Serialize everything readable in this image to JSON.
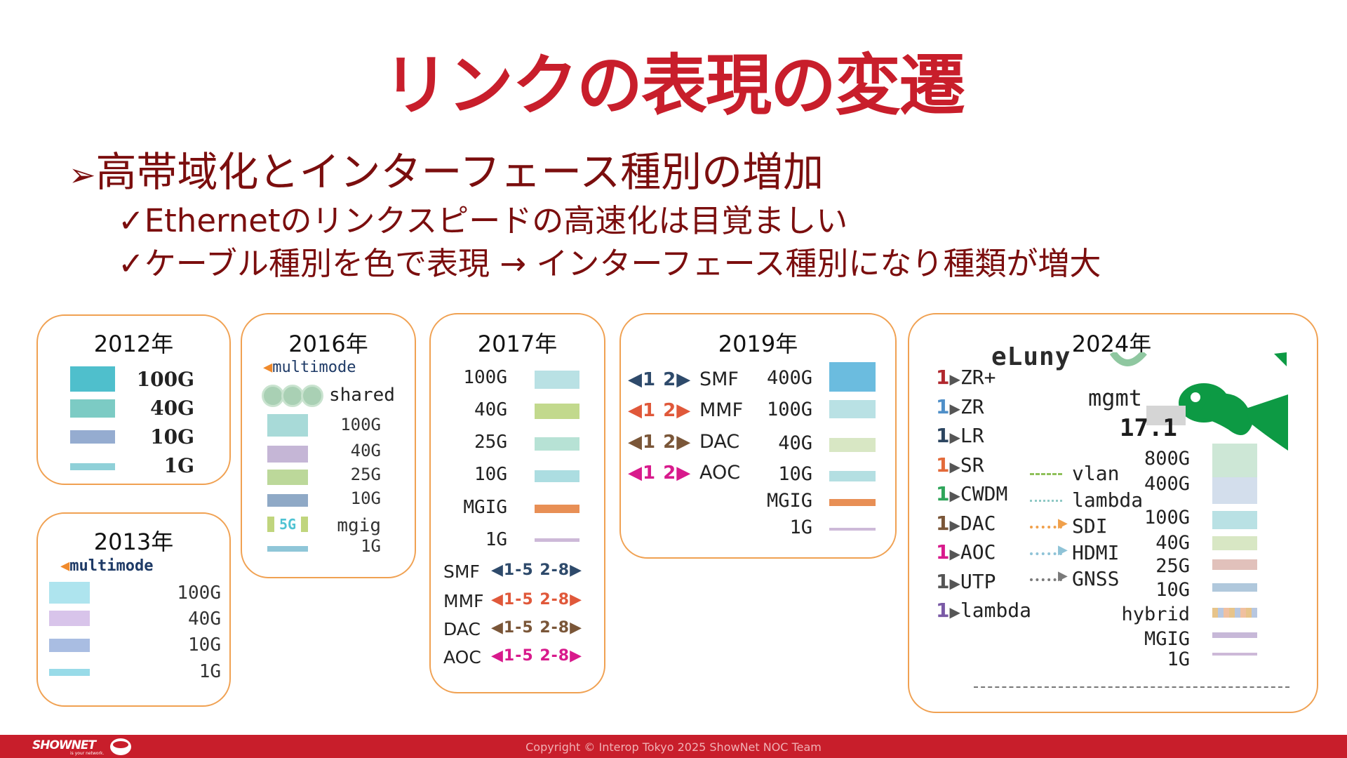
{
  "title": "リンクの表現の変遷",
  "bullets": {
    "main": "高帯域化とインターフェース種別の増加",
    "marker": "➢",
    "check": "✓",
    "sub1": "Ethernetのリンクスピードの高速化は目覚ましい",
    "sub2": "ケーブル種別を色で表現 → インターフェース種別になり種類が増大"
  },
  "y2012": {
    "year": "2012年",
    "items": [
      {
        "label": "100G",
        "color": "#4fbfcc"
      },
      {
        "label": "40G",
        "color": "#7ccbc4"
      },
      {
        "label": "10G",
        "color": "#95acd0"
      },
      {
        "label": "1G",
        "color": "#8fd0d8"
      }
    ]
  },
  "y2013": {
    "year": "2013年",
    "multimode": "multimode",
    "items": [
      {
        "label": "100G",
        "color": "#aee4ee"
      },
      {
        "label": "40G",
        "color": "#d8c4ea"
      },
      {
        "label": "10G",
        "color": "#a9bde2"
      },
      {
        "label": "1G",
        "color": "#98dbe8"
      }
    ]
  },
  "y2016": {
    "year": "2016年",
    "multimode": "multimode",
    "shared": "shared",
    "items": [
      {
        "label": "100G",
        "color": "#a8dad8"
      },
      {
        "label": "40G",
        "color": "#c5b6d6"
      },
      {
        "label": "25G",
        "color": "#bcd89a"
      },
      {
        "label": "10G",
        "color": "#8fa9c6"
      }
    ],
    "mgig_tag": "5G",
    "mgig": "mgig",
    "g1": "1G"
  },
  "y2017": {
    "year": "2017年",
    "items": [
      {
        "label": "100G",
        "color": "#b9e1e4"
      },
      {
        "label": "40G",
        "color": "#c2d98d"
      },
      {
        "label": "25G",
        "color": "#b7e2d5"
      },
      {
        "label": "10G",
        "color": "#acdde1"
      },
      {
        "label": "MGIG",
        "color": "#e88f55"
      },
      {
        "label": "1G",
        "color": "#cdb9d8"
      }
    ],
    "cables": [
      {
        "label": "SMF",
        "ports": "◀1-5 2-8▶",
        "color": "#2e4a6b"
      },
      {
        "label": "MMF",
        "ports": "◀1-5 2-8▶",
        "color": "#e0583a"
      },
      {
        "label": "DAC",
        "ports": "◀1-5 2-8▶",
        "color": "#7a5638"
      },
      {
        "label": "AOC",
        "ports": "◀1-5 2-8▶",
        "color": "#d81a8c"
      }
    ]
  },
  "y2019": {
    "year": "2019年",
    "cables": [
      {
        "label": "SMF",
        "ports": "◀1 2▶",
        "color": "#2e4a6b"
      },
      {
        "label": "MMF",
        "ports": "◀1 2▶",
        "color": "#e0583a"
      },
      {
        "label": "DAC",
        "ports": "◀1 2▶",
        "color": "#7a5638"
      },
      {
        "label": "AOC",
        "ports": "◀1 2▶",
        "color": "#d81a8c"
      }
    ],
    "items": [
      {
        "label": "400G",
        "color": "#6bbcdf"
      },
      {
        "label": "100G",
        "color": "#b9e1e4"
      },
      {
        "label": "40G",
        "color": "#d8e7c4"
      },
      {
        "label": "10G",
        "color": "#b4dfe2"
      },
      {
        "label": "MGIG",
        "color": "#e88f55"
      },
      {
        "label": "1G",
        "color": "#cdb9d8"
      }
    ]
  },
  "y2024": {
    "year": "2024年",
    "optics": [
      {
        "label": "ZR+",
        "color": "#b1282e"
      },
      {
        "label": "ZR",
        "color": "#4f8fc8"
      },
      {
        "label": "LR",
        "color": "#2c4560"
      },
      {
        "label": "SR",
        "color": "#e36a3a"
      },
      {
        "label": "CWDM",
        "color": "#2fa55a"
      },
      {
        "label": "DAC",
        "color": "#7a5638"
      },
      {
        "label": "AOC",
        "color": "#d81a8c"
      },
      {
        "label": "UTP",
        "color": "#555555"
      },
      {
        "label": "lambda",
        "color": "#7a5aa6"
      }
    ],
    "port_num": "1",
    "lines": [
      {
        "label": "vlan",
        "color": "#8fc05a"
      },
      {
        "label": "lambda",
        "color": "#8fc9c5"
      },
      {
        "label": "SDI",
        "color": "#f0a04b"
      },
      {
        "label": "HDMI",
        "color": "#8fc3d7"
      },
      {
        "label": "GNSS",
        "color": "#7a7a7a"
      }
    ],
    "speeds": [
      {
        "label": "800G",
        "color": "#cde7d6"
      },
      {
        "label": "400G",
        "color": "#d3deec"
      },
      {
        "label": "100G",
        "color": "#b9e1e4"
      },
      {
        "label": "40G",
        "color": "#d8e7c4"
      },
      {
        "label": "25G",
        "color": "#e1c1bb"
      },
      {
        "label": "10G",
        "color": "#b0c8dc"
      },
      {
        "label": "hybrid",
        "color": "#e7c48a"
      },
      {
        "label": "MGIG",
        "color": "#c7b8d8"
      },
      {
        "label": "1G",
        "color": "#cdb9d8"
      }
    ],
    "elk_text": "eLuny",
    "mgmt": "mgmt",
    "mgmt_num": "17.1"
  },
  "footer": {
    "copyright": "Copyright © Interop Tokyo 2025 ShowNet NOC Team",
    "logo": "SHOWNET",
    "logo_sub": "is your network."
  },
  "colors": {
    "accent": "#c81e2b",
    "subtitle": "#7b0e0e",
    "box_border": "#f0a152"
  }
}
